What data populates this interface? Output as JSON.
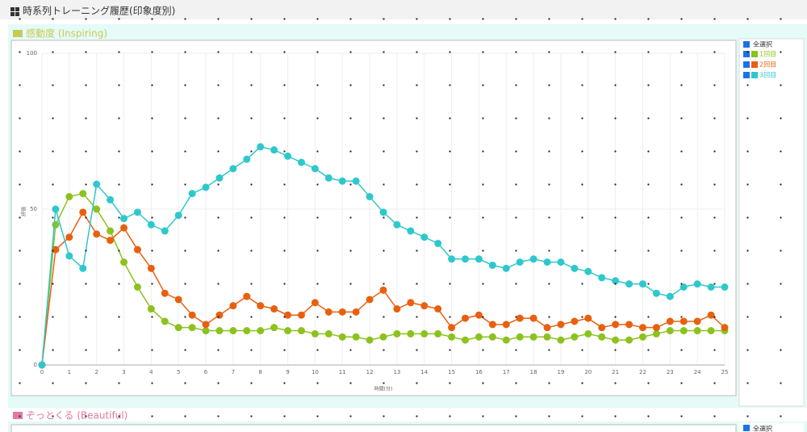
{
  "header": {
    "title": "時系列トレーニング履歴(印象度別)"
  },
  "sections": [
    {
      "title": "感動度 (Inspiring)"
    },
    {
      "title": "ぞっとくる (Beautiful)",
      "select_all": "全選択"
    }
  ],
  "chart_data": {
    "type": "line",
    "xlabel": "時間(分)",
    "ylabel": "評価",
    "select_all_label": "全選択",
    "x": [
      0,
      0.5,
      1,
      1.5,
      2,
      2.5,
      3,
      3.5,
      4,
      4.5,
      5,
      5.5,
      6,
      6.5,
      7,
      7.5,
      8,
      8.5,
      9,
      9.5,
      10,
      10.5,
      11,
      11.5,
      12,
      12.5,
      13,
      13.5,
      14,
      14.5,
      15,
      15.5,
      16,
      16.5,
      17,
      17.5,
      18,
      18.5,
      19,
      19.5,
      20,
      20.5,
      21,
      21.5,
      22,
      22.5,
      23,
      23.5,
      24,
      24.5,
      25
    ],
    "series": [
      {
        "name": "1回目",
        "color": "#8cc21e",
        "values": [
          0,
          45,
          54,
          55,
          50,
          43,
          33,
          25,
          18,
          14,
          12,
          12,
          11,
          11,
          11,
          11,
          11,
          12,
          11,
          11,
          10,
          10,
          9,
          9,
          8,
          9,
          10,
          10,
          10,
          10,
          9,
          8,
          9,
          9,
          8,
          9,
          9,
          9,
          8,
          9,
          10,
          9,
          8,
          8,
          9,
          10,
          11,
          11,
          11,
          11,
          11
        ]
      },
      {
        "name": "2回目",
        "color": "#e8600f",
        "values": [
          0,
          37,
          41,
          49,
          42,
          40,
          44,
          37,
          31,
          23,
          21,
          16,
          13,
          16,
          19,
          22,
          19,
          18,
          16,
          16,
          20,
          17,
          17,
          17,
          21,
          24,
          18,
          20,
          19,
          18,
          12,
          15,
          16,
          13,
          13,
          15,
          15,
          12,
          13,
          14,
          15,
          12,
          13,
          13,
          12,
          12,
          14,
          14,
          14,
          16,
          12
        ]
      },
      {
        "name": "3回目",
        "color": "#2ec8cc",
        "values": [
          0,
          50,
          35,
          31,
          58,
          53,
          47,
          49,
          45,
          43,
          48,
          55,
          57,
          60,
          63,
          66,
          70,
          69,
          67,
          65,
          63,
          60,
          59,
          59,
          54,
          49,
          45,
          43,
          41,
          39,
          34,
          34,
          34,
          32,
          31,
          33,
          34,
          33,
          33,
          31,
          30,
          28,
          27,
          26,
          26,
          23,
          22,
          25,
          26,
          25,
          25
        ]
      }
    ],
    "xlim": [
      0,
      25
    ],
    "ylim": [
      0,
      100
    ],
    "xticks": [
      0,
      1,
      2,
      3,
      4,
      5,
      6,
      7,
      8,
      9,
      10,
      11,
      12,
      13,
      14,
      15,
      16,
      17,
      18,
      19,
      20,
      21,
      22,
      23,
      24,
      25
    ],
    "yticks": [
      0,
      50,
      100
    ],
    "grid": true,
    "legend": "right"
  }
}
